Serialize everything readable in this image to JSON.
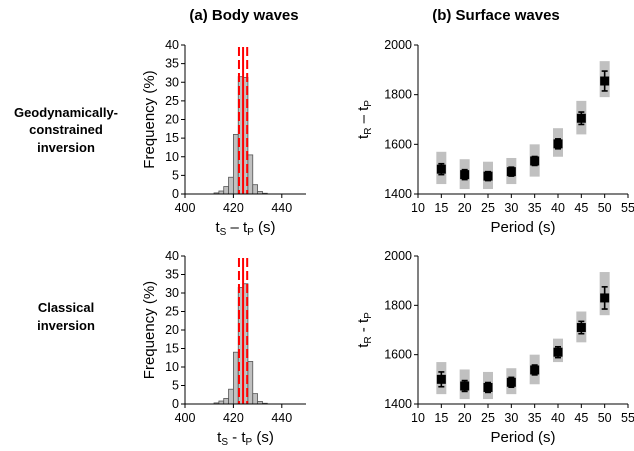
{
  "columns": {
    "a": "(a) Body waves",
    "b": "(b) Surface waves"
  },
  "rows": [
    {
      "lines": [
        "Geodynamically-",
        "constrained",
        "inversion"
      ]
    },
    {
      "lines": [
        "Classical",
        "inversion"
      ]
    }
  ],
  "chart_data": [
    {
      "id": "body-geo",
      "type": "bar",
      "subtype": "histogram",
      "xlabel": {
        "base1": "t",
        "sub1": "S",
        "sep": " – ",
        "base2": "t",
        "sub2": "P",
        "unit": " (s)"
      },
      "ylabel": "Frequency (%)",
      "xlim": [
        400,
        450
      ],
      "ylim": [
        0,
        40
      ],
      "xticks": [
        400,
        420,
        440
      ],
      "yticks": [
        0,
        5,
        10,
        15,
        20,
        25,
        30,
        35,
        40
      ],
      "bin_width": 2,
      "bins": [
        {
          "x": 412,
          "value": 0.3
        },
        {
          "x": 414,
          "value": 0.8
        },
        {
          "x": 416,
          "value": 2.0
        },
        {
          "x": 418,
          "value": 4.5
        },
        {
          "x": 420,
          "value": 16.0
        },
        {
          "x": 422,
          "value": 31.5
        },
        {
          "x": 424,
          "value": 31.3
        },
        {
          "x": 426,
          "value": 10.5
        },
        {
          "x": 428,
          "value": 2.5
        },
        {
          "x": 430,
          "value": 0.7
        },
        {
          "x": 432,
          "value": 0.2
        }
      ],
      "median": 424,
      "interval": [
        422.3,
        425.7
      ],
      "colors": {
        "bar": "#c0c0c0",
        "median": "#ff0000",
        "interval": "#ff0000"
      }
    },
    {
      "id": "surface-geo",
      "type": "scatter",
      "xlabel": "Period (s)",
      "ylabel": {
        "base1": "t",
        "sub1": "R",
        "sep": " – ",
        "base2": "t",
        "sub2": "P"
      },
      "xlim": [
        10,
        55
      ],
      "ylim": [
        1400,
        2000
      ],
      "xticks": [
        10,
        15,
        20,
        25,
        30,
        35,
        40,
        45,
        50,
        55
      ],
      "yticks": [
        1400,
        1600,
        1800,
        2000
      ],
      "points": [
        {
          "x": 15,
          "y": 1500,
          "err": 22,
          "band": [
            1440,
            1570
          ]
        },
        {
          "x": 20,
          "y": 1478,
          "err": 20,
          "band": [
            1420,
            1540
          ]
        },
        {
          "x": 25,
          "y": 1472,
          "err": 18,
          "band": [
            1420,
            1530
          ]
        },
        {
          "x": 30,
          "y": 1490,
          "err": 18,
          "band": [
            1440,
            1545
          ]
        },
        {
          "x": 35,
          "y": 1533,
          "err": 18,
          "band": [
            1470,
            1600
          ]
        },
        {
          "x": 40,
          "y": 1602,
          "err": 20,
          "band": [
            1550,
            1665
          ]
        },
        {
          "x": 45,
          "y": 1705,
          "err": 25,
          "band": [
            1640,
            1775
          ]
        },
        {
          "x": 50,
          "y": 1855,
          "err": 40,
          "band": [
            1790,
            1935
          ]
        }
      ],
      "colors": {
        "point": "#000000",
        "band": "#c0c0c0"
      }
    },
    {
      "id": "body-classic",
      "type": "bar",
      "subtype": "histogram",
      "xlabel": {
        "base1": "t",
        "sub1": "S",
        "sep": " - ",
        "base2": "t",
        "sub2": "P",
        "unit": " (s)"
      },
      "ylabel": "Frequency (%)",
      "xlim": [
        400,
        450
      ],
      "ylim": [
        0,
        40
      ],
      "xticks": [
        400,
        420,
        440
      ],
      "yticks": [
        0,
        5,
        10,
        15,
        20,
        25,
        30,
        35,
        40
      ],
      "bin_width": 2,
      "bins": [
        {
          "x": 412,
          "value": 0.3
        },
        {
          "x": 414,
          "value": 0.8
        },
        {
          "x": 416,
          "value": 1.5
        },
        {
          "x": 418,
          "value": 4.0
        },
        {
          "x": 420,
          "value": 14.0
        },
        {
          "x": 422,
          "value": 31.5
        },
        {
          "x": 424,
          "value": 32.5
        },
        {
          "x": 426,
          "value": 11.5
        },
        {
          "x": 428,
          "value": 2.8
        },
        {
          "x": 430,
          "value": 0.7
        },
        {
          "x": 432,
          "value": 0.2
        }
      ],
      "median": 424,
      "interval": [
        422.3,
        425.7
      ],
      "colors": {
        "bar": "#c0c0c0",
        "median": "#ff0000",
        "interval": "#ff0000"
      }
    },
    {
      "id": "surface-classic",
      "type": "scatter",
      "xlabel": "Period (s)",
      "ylabel": {
        "base1": "t",
        "sub1": "R",
        "sep": " - ",
        "base2": "t",
        "sub2": "P"
      },
      "xlim": [
        10,
        55
      ],
      "ylim": [
        1400,
        2000
      ],
      "xticks": [
        10,
        15,
        20,
        25,
        30,
        35,
        40,
        45,
        50,
        55
      ],
      "yticks": [
        1400,
        1600,
        1800,
        2000
      ],
      "points": [
        {
          "x": 15,
          "y": 1500,
          "err": 30,
          "band": [
            1440,
            1570
          ]
        },
        {
          "x": 20,
          "y": 1473,
          "err": 22,
          "band": [
            1420,
            1540
          ]
        },
        {
          "x": 25,
          "y": 1467,
          "err": 20,
          "band": [
            1420,
            1530
          ]
        },
        {
          "x": 30,
          "y": 1488,
          "err": 20,
          "band": [
            1440,
            1545
          ]
        },
        {
          "x": 35,
          "y": 1538,
          "err": 20,
          "band": [
            1480,
            1600
          ]
        },
        {
          "x": 40,
          "y": 1610,
          "err": 22,
          "band": [
            1570,
            1665
          ]
        },
        {
          "x": 45,
          "y": 1710,
          "err": 25,
          "band": [
            1650,
            1775
          ]
        },
        {
          "x": 50,
          "y": 1830,
          "err": 45,
          "band": [
            1760,
            1935
          ]
        }
      ],
      "colors": {
        "point": "#000000",
        "band": "#c0c0c0"
      }
    }
  ]
}
